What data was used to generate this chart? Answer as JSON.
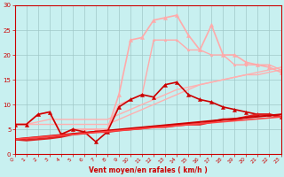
{
  "xlabel": "Vent moyen/en rafales ( km/h )",
  "xlim": [
    0,
    23
  ],
  "ylim": [
    0,
    30
  ],
  "xticks": [
    0,
    1,
    2,
    3,
    4,
    5,
    6,
    7,
    8,
    9,
    10,
    11,
    12,
    13,
    14,
    15,
    16,
    17,
    18,
    19,
    20,
    21,
    22,
    23
  ],
  "yticks": [
    0,
    5,
    10,
    15,
    20,
    25,
    30
  ],
  "bg_color": "#c8f0f0",
  "grid_color": "#a0c8c8",
  "axis_color": "#cc0000",
  "label_color": "#cc0000",
  "series": [
    {
      "x": [
        0,
        1,
        2,
        3,
        4,
        5,
        6,
        7,
        8,
        9,
        10,
        11,
        12,
        13,
        14,
        15,
        16,
        17,
        18,
        19,
        20,
        21,
        22,
        23
      ],
      "y": [
        6,
        6,
        6,
        6,
        6,
        6,
        6,
        6,
        6,
        7,
        8,
        9,
        10,
        11,
        12,
        13,
        14,
        14.5,
        15,
        15.5,
        16,
        16,
        16.5,
        17
      ],
      "color": "#ffb0b0",
      "lw": 1.0,
      "marker": null
    },
    {
      "x": [
        0,
        1,
        2,
        3,
        4,
        5,
        6,
        7,
        8,
        9,
        10,
        11,
        12,
        13,
        14,
        15,
        16,
        17,
        18,
        19,
        20,
        21,
        22,
        23
      ],
      "y": [
        6,
        6,
        6.5,
        7,
        7,
        7,
        7,
        7,
        7,
        8,
        9,
        10,
        11,
        12,
        13,
        13.5,
        14,
        14.5,
        15,
        15.5,
        16,
        16.5,
        17,
        17.5
      ],
      "color": "#ffb0b0",
      "lw": 1.0,
      "marker": null
    },
    {
      "x": [
        0,
        1,
        2,
        3,
        4,
        5,
        6,
        7,
        8,
        9,
        10,
        11,
        12,
        13,
        14,
        15,
        16,
        17,
        18,
        19,
        20,
        21,
        22,
        23
      ],
      "y": [
        6,
        6,
        8,
        8.5,
        4,
        5,
        5,
        5,
        5,
        12,
        23,
        23.5,
        27,
        27.5,
        28,
        24,
        21,
        26,
        20,
        20,
        18.5,
        18,
        17.5,
        16.5
      ],
      "color": "#ffaaaa",
      "lw": 1.2,
      "marker": "^",
      "ms": 3
    },
    {
      "x": [
        0,
        1,
        2,
        3,
        4,
        5,
        6,
        7,
        8,
        9,
        10,
        11,
        12,
        13,
        14,
        15,
        16,
        17,
        18,
        19,
        20,
        21,
        22,
        23
      ],
      "y": [
        6,
        6,
        8,
        8.5,
        4,
        5,
        5,
        5,
        5,
        10,
        11,
        12,
        23,
        23,
        23,
        21,
        21,
        20,
        20,
        18,
        18,
        18,
        18,
        17
      ],
      "color": "#ffaaaa",
      "lw": 1.0,
      "marker": "^",
      "ms": 2
    },
    {
      "x": [
        0,
        1,
        2,
        3,
        4,
        5,
        6,
        7,
        8,
        9,
        10,
        11,
        12,
        13,
        14,
        15,
        16,
        17,
        18,
        19,
        20,
        21,
        22,
        23
      ],
      "y": [
        6,
        6,
        8,
        8.5,
        4,
        5,
        4.5,
        2.5,
        4.5,
        9.5,
        11,
        12,
        11.5,
        14,
        14.5,
        12,
        11,
        10.5,
        9.5,
        9,
        8.5,
        8,
        8,
        7.5
      ],
      "color": "#cc0000",
      "lw": 1.2,
      "marker": "^",
      "ms": 3
    },
    {
      "x": [
        0,
        1,
        2,
        3,
        4,
        5,
        6,
        7,
        8,
        9,
        10,
        11,
        12,
        13,
        14,
        15,
        16,
        17,
        18,
        19,
        20,
        21,
        22,
        23
      ],
      "y": [
        3,
        2.8,
        3,
        3.2,
        3.5,
        4,
        4.2,
        4.5,
        4.5,
        4.8,
        5,
        5.2,
        5.5,
        5.5,
        5.8,
        6,
        6,
        6.5,
        7,
        7,
        7.5,
        8,
        8,
        7.5
      ],
      "color": "#dd2222",
      "lw": 1.8,
      "marker": null
    },
    {
      "x": [
        0,
        23
      ],
      "y": [
        3,
        8
      ],
      "color": "#cc0000",
      "lw": 1.5,
      "marker": null
    },
    {
      "x": [
        0,
        23
      ],
      "y": [
        3,
        7.5
      ],
      "color": "#ff4444",
      "lw": 1.2,
      "marker": null
    }
  ]
}
